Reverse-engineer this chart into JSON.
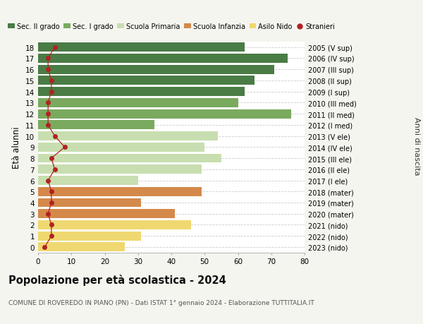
{
  "ages": [
    18,
    17,
    16,
    15,
    14,
    13,
    12,
    11,
    10,
    9,
    8,
    7,
    6,
    5,
    4,
    3,
    2,
    1,
    0
  ],
  "bar_values": [
    62,
    75,
    71,
    65,
    62,
    60,
    76,
    35,
    54,
    50,
    55,
    49,
    30,
    49,
    31,
    41,
    46,
    31,
    26
  ],
  "stranieri": [
    5,
    3,
    3,
    4,
    4,
    3,
    3,
    3,
    5,
    8,
    4,
    5,
    3,
    4,
    4,
    3,
    4,
    4,
    2
  ],
  "bar_colors": [
    "#4a7c45",
    "#4a7c45",
    "#4a7c45",
    "#4a7c45",
    "#4a7c45",
    "#7aaa5e",
    "#7aaa5e",
    "#7aaa5e",
    "#c8deb0",
    "#c8deb0",
    "#c8deb0",
    "#c8deb0",
    "#c8deb0",
    "#d4894a",
    "#d4894a",
    "#d4894a",
    "#f0d870",
    "#f0d870",
    "#f0d870"
  ],
  "right_labels": [
    "2005 (V sup)",
    "2006 (IV sup)",
    "2007 (III sup)",
    "2008 (II sup)",
    "2009 (I sup)",
    "2010 (III med)",
    "2011 (II med)",
    "2012 (I med)",
    "2013 (V ele)",
    "2014 (IV ele)",
    "2015 (III ele)",
    "2016 (II ele)",
    "2017 (I ele)",
    "2018 (mater)",
    "2019 (mater)",
    "2020 (mater)",
    "2021 (nido)",
    "2022 (nido)",
    "2023 (nido)"
  ],
  "legend_labels": [
    "Sec. II grado",
    "Sec. I grado",
    "Scuola Primaria",
    "Scuola Infanzia",
    "Asilo Nido",
    "Stranieri"
  ],
  "legend_colors": [
    "#4a7c45",
    "#7aaa5e",
    "#c8deb0",
    "#d4894a",
    "#f0d870",
    "#b22222"
  ],
  "ylabel": "Età alunni",
  "ylabel_right": "Anni di nascita",
  "title": "Popolazione per età scolastica - 2024",
  "subtitle": "COMUNE DI ROVEREDO IN PIANO (PN) - Dati ISTAT 1° gennaio 2024 - Elaborazione TUTTITALIA.IT",
  "xlim": [
    0,
    80
  ],
  "background_color": "#f5f5ef",
  "bar_background": "#ffffff"
}
